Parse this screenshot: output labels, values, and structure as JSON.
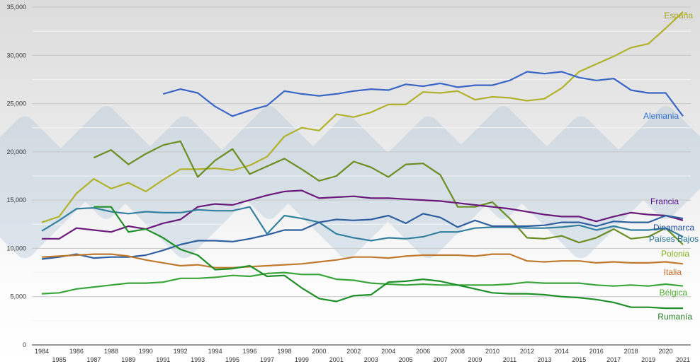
{
  "chart_data": {
    "type": "line",
    "title": "",
    "xlabel": "",
    "ylabel": "",
    "ylim": [
      0,
      35000
    ],
    "y_ticks": [
      "0",
      "5,000",
      "10,000",
      "15,000",
      "20,000",
      "25,000",
      "30,000",
      "35,000"
    ],
    "y_tick_values": [
      0,
      5000,
      10000,
      15000,
      20000,
      25000,
      30000,
      35000
    ],
    "grid": true,
    "legend": "labels at line ends (right)",
    "x": [
      1984,
      1985,
      1986,
      1987,
      1988,
      1989,
      1990,
      1991,
      1992,
      1993,
      1994,
      1995,
      1996,
      1997,
      1998,
      1999,
      2000,
      2001,
      2002,
      2003,
      2004,
      2005,
      2006,
      2007,
      2008,
      2009,
      2010,
      2011,
      2012,
      2013,
      2014,
      2015,
      2016,
      2017,
      2018,
      2019,
      2020,
      2021
    ],
    "series": [
      {
        "name": "España",
        "color": "#b1b22b",
        "values": [
          12700,
          13300,
          15700,
          17200,
          16200,
          16800,
          15900,
          17100,
          18200,
          18200,
          18300,
          18100,
          18600,
          19500,
          21600,
          22500,
          22200,
          23900,
          23600,
          24100,
          24900,
          24900,
          26200,
          26100,
          26300,
          25400,
          25700,
          25600,
          25300,
          25500,
          26600,
          28300,
          29100,
          29900,
          30800,
          31200,
          32800,
          34500
        ]
      },
      {
        "name": "Alemania",
        "color": "#3a66c8",
        "values": [
          null,
          null,
          null,
          null,
          null,
          null,
          null,
          26000,
          26500,
          26100,
          24700,
          23700,
          24300,
          24800,
          26300,
          26000,
          25800,
          26000,
          26300,
          26500,
          26400,
          27000,
          26800,
          27100,
          26700,
          26900,
          26900,
          27400,
          28300,
          28100,
          28300,
          27700,
          27400,
          27600,
          26400,
          26100,
          26100,
          23700
        ]
      },
      {
        "name": "Polonia",
        "color": "#6b8e23",
        "values": [
          null,
          null,
          null,
          19400,
          20200,
          18700,
          19800,
          20700,
          21100,
          17400,
          19100,
          20300,
          17700,
          18500,
          19300,
          18200,
          17000,
          17500,
          19000,
          18400,
          17400,
          18700,
          18800,
          17600,
          14300,
          14300,
          14800,
          13100,
          11100,
          11000,
          11300,
          10600,
          11100,
          12000,
          11000,
          11200,
          12100,
          10400
        ]
      },
      {
        "name": "Francia",
        "color": "#6a1a7a",
        "values": [
          11000,
          11000,
          12100,
          11900,
          11700,
          12300,
          12000,
          12600,
          13000,
          14300,
          14600,
          14500,
          15000,
          15500,
          15900,
          16000,
          15200,
          15300,
          15400,
          15200,
          15200,
          15100,
          15000,
          14900,
          14700,
          14500,
          14300,
          14100,
          13800,
          13500,
          13300,
          13300,
          12800,
          13300,
          13700,
          13500,
          13400,
          12900
        ]
      },
      {
        "name": "Países Bajos",
        "color": "#34809f",
        "values": [
          11800,
          12900,
          14100,
          14200,
          13800,
          13600,
          13800,
          13700,
          13700,
          14000,
          13900,
          13900,
          14300,
          11500,
          13400,
          13100,
          12700,
          11500,
          11100,
          10800,
          11100,
          11000,
          11200,
          11700,
          11700,
          12100,
          12200,
          12200,
          12100,
          12100,
          12200,
          12400,
          11900,
          12300,
          11900,
          11900,
          12100,
          11200
        ]
      },
      {
        "name": "Dinamarca",
        "color": "#2f5f9e",
        "values": [
          8900,
          9100,
          9400,
          9000,
          9100,
          9100,
          9300,
          9800,
          10400,
          10800,
          10800,
          10700,
          11000,
          11400,
          11900,
          11900,
          12700,
          13000,
          12900,
          13000,
          13400,
          12600,
          13600,
          13200,
          12200,
          12900,
          12300,
          12300,
          12300,
          12400,
          12700,
          12700,
          12300,
          12800,
          12700,
          12700,
          13400,
          13100
        ]
      },
      {
        "name": "Italia",
        "color": "#c07a30",
        "values": [
          9100,
          9200,
          9300,
          9400,
          9400,
          9200,
          8800,
          8500,
          8200,
          8300,
          8000,
          8000,
          8100,
          8200,
          8300,
          8400,
          8600,
          8800,
          9100,
          9100,
          9000,
          9200,
          9300,
          9300,
          9300,
          9200,
          9400,
          9400,
          8700,
          8600,
          8700,
          8700,
          8500,
          8600,
          8500,
          8500,
          8600,
          8400
        ]
      },
      {
        "name": "Bélgica",
        "color": "#3aa53a",
        "values": [
          5300,
          5400,
          5800,
          6000,
          6200,
          6400,
          6400,
          6500,
          6900,
          6900,
          7000,
          7200,
          7100,
          7400,
          7500,
          7300,
          7300,
          6800,
          6700,
          6400,
          6300,
          6200,
          6300,
          6200,
          6200,
          6200,
          6200,
          6300,
          6500,
          6400,
          6400,
          6400,
          6200,
          6100,
          6200,
          6100,
          6300,
          6100
        ]
      },
      {
        "name": "Rumanía",
        "color": "#1f8f2a",
        "values": [
          null,
          null,
          null,
          14300,
          14300,
          11700,
          12000,
          11100,
          9900,
          9300,
          7800,
          7900,
          8200,
          7100,
          7200,
          5900,
          4800,
          4500,
          5100,
          5200,
          6500,
          6600,
          6800,
          6600,
          6200,
          5800,
          5400,
          5300,
          5300,
          5200,
          5000,
          4900,
          4700,
          4400,
          3900,
          3900,
          3800,
          3800
        ]
      }
    ],
    "labels": [
      {
        "text": "España",
        "color": "#a5a51f"
      },
      {
        "text": "Alemania",
        "color": "#2f6fcc"
      },
      {
        "text": "Francia",
        "color": "#5a1290"
      },
      {
        "text": "Dinamarca",
        "color": "#1f4f99"
      },
      {
        "text": "Países Bajos",
        "color": "#1f6f8f"
      },
      {
        "text": "Polonia",
        "color": "#7fae1f"
      },
      {
        "text": "Italia",
        "color": "#c0702a"
      },
      {
        "text": "Bélgica",
        "color": "#4caf30"
      },
      {
        "text": "Rumanía",
        "color": "#2a7a2a"
      }
    ]
  }
}
